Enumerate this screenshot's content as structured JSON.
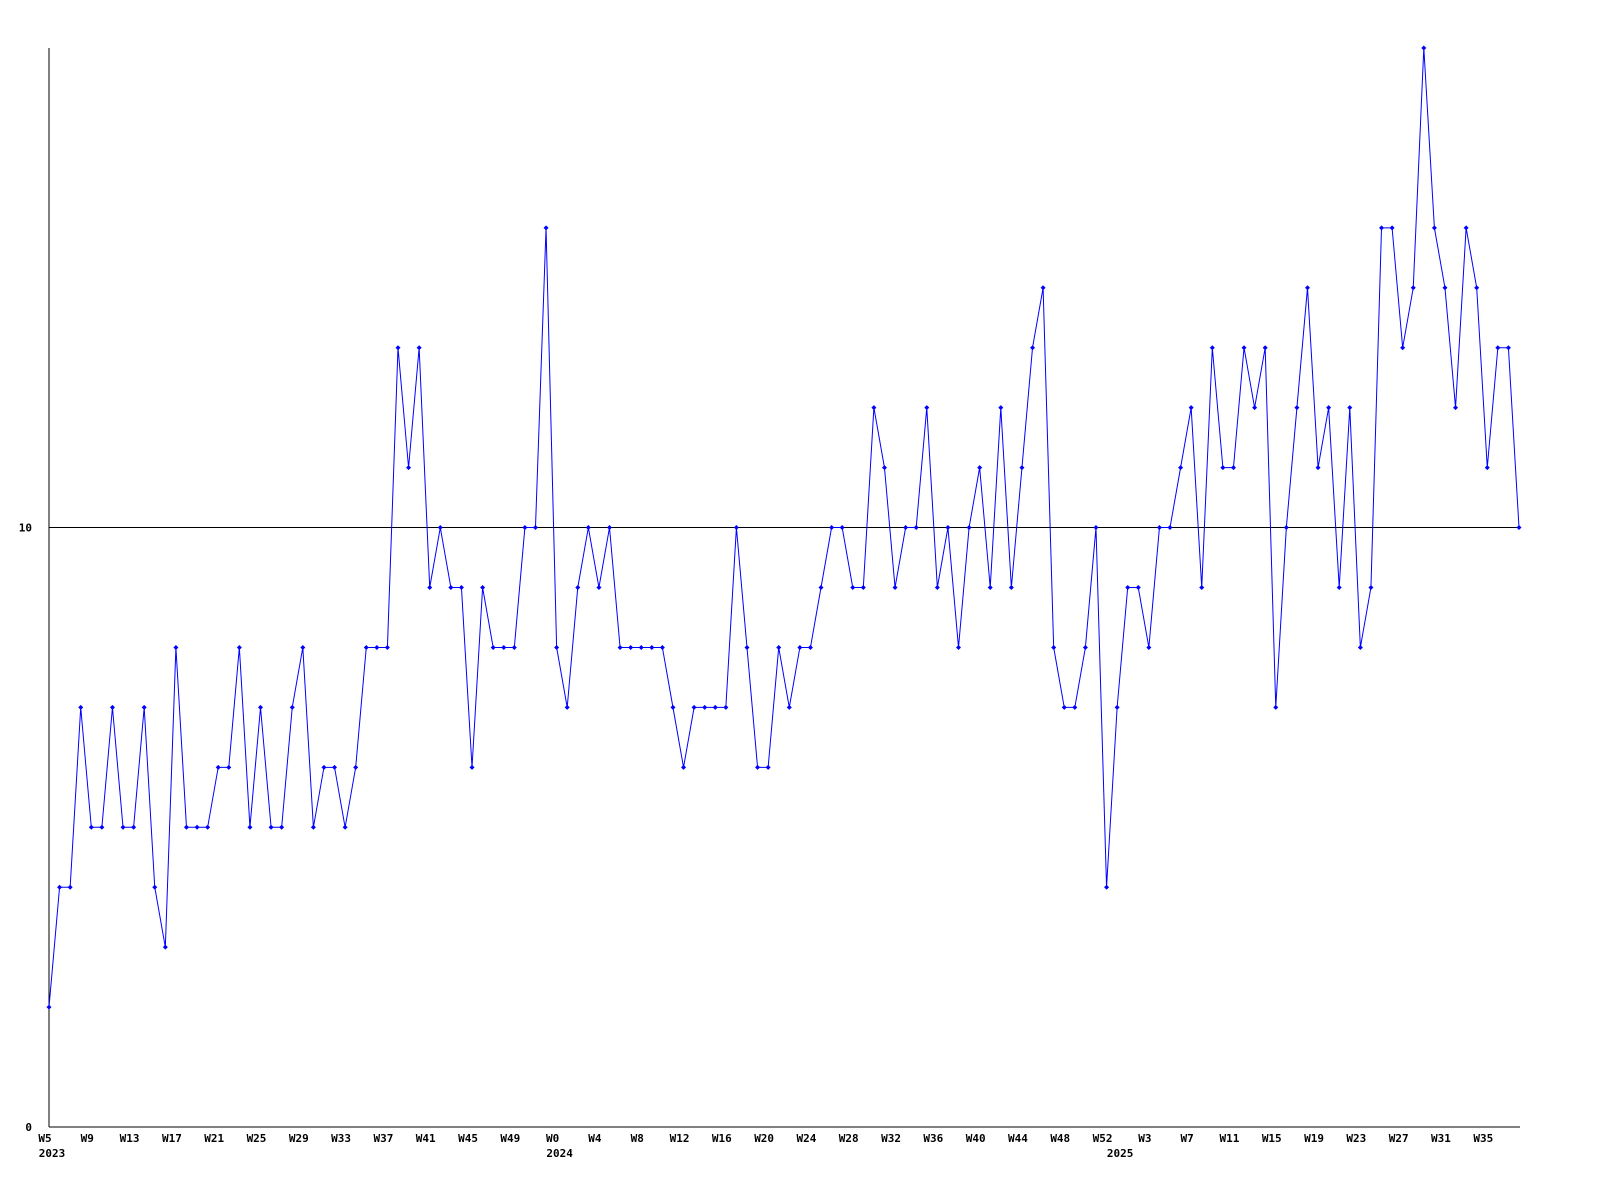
{
  "chart_data": {
    "type": "line",
    "color": "#0000ff",
    "ylim": [
      0,
      18
    ],
    "yticks": [
      0,
      10
    ],
    "grid": true,
    "categories": [
      "W5",
      null,
      null,
      null,
      "W9",
      null,
      null,
      null,
      "W13",
      null,
      null,
      null,
      "W17",
      null,
      null,
      null,
      "W21",
      null,
      null,
      null,
      "W25",
      null,
      null,
      null,
      "W29",
      null,
      null,
      null,
      "W33",
      null,
      null,
      null,
      "W37",
      null,
      null,
      null,
      "W41",
      null,
      null,
      null,
      "W45",
      null,
      null,
      null,
      "W49",
      null,
      null,
      null,
      "W0",
      null,
      null,
      null,
      "W4",
      null,
      null,
      null,
      "W8",
      null,
      null,
      null,
      "W12",
      null,
      null,
      null,
      "W16",
      null,
      null,
      null,
      "W20",
      null,
      null,
      null,
      "W24",
      null,
      null,
      null,
      "W28",
      null,
      null,
      null,
      "W32",
      null,
      null,
      null,
      "W36",
      null,
      null,
      null,
      "W40",
      null,
      null,
      null,
      "W44",
      null,
      null,
      null,
      "W48",
      null,
      null,
      null,
      "W52",
      null,
      null,
      null,
      "W3",
      null,
      null,
      null,
      "W7",
      null,
      null,
      null,
      "W11",
      null,
      null,
      null,
      "W15",
      null,
      null,
      null,
      "W19",
      null,
      null,
      null,
      "W23",
      null,
      null,
      null,
      "W27",
      null,
      null,
      null,
      "W31",
      null,
      null,
      null,
      "W35",
      null,
      null,
      null
    ],
    "year_labels": [
      "2023",
      null,
      null,
      null,
      null,
      null,
      null,
      null,
      null,
      null,
      null,
      null,
      null,
      null,
      null,
      null,
      null,
      null,
      null,
      null,
      null,
      null,
      null,
      null,
      null,
      null,
      null,
      null,
      null,
      null,
      null,
      null,
      null,
      null,
      null,
      null,
      null,
      null,
      null,
      null,
      null,
      null,
      null,
      null,
      null,
      null,
      null,
      null,
      "2024",
      null,
      null,
      null,
      null,
      null,
      null,
      null,
      null,
      null,
      null,
      null,
      null,
      null,
      null,
      null,
      null,
      null,
      null,
      null,
      null,
      null,
      null,
      null,
      null,
      null,
      null,
      null,
      null,
      null,
      null,
      null,
      null,
      null,
      null,
      null,
      null,
      null,
      null,
      null,
      null,
      null,
      null,
      null,
      null,
      null,
      null,
      null,
      null,
      null,
      null,
      null,
      null,
      "2025",
      null,
      null,
      null,
      null,
      null,
      null,
      null,
      null,
      null,
      null,
      null,
      null,
      null,
      null,
      null,
      null,
      null,
      null,
      null,
      null,
      null,
      null,
      null,
      null,
      null,
      null,
      null,
      null,
      null,
      null,
      null,
      null,
      null,
      null,
      null,
      null,
      null,
      null
    ],
    "values": [
      2,
      4,
      4,
      7,
      5,
      5,
      7,
      5,
      5,
      7,
      4,
      3,
      8,
      5,
      5,
      5,
      6,
      6,
      8,
      5,
      7,
      5,
      5,
      7,
      8,
      5,
      6,
      6,
      5,
      6,
      8,
      8,
      8,
      13,
      11,
      13,
      9,
      10,
      9,
      9,
      6,
      9,
      8,
      8,
      8,
      10,
      10,
      15,
      8,
      7,
      9,
      10,
      9,
      10,
      8,
      8,
      8,
      8,
      8,
      7,
      6,
      7,
      7,
      7,
      7,
      10,
      8,
      6,
      6,
      8,
      7,
      8,
      8,
      9,
      10,
      10,
      9,
      9,
      12,
      11,
      9,
      10,
      10,
      12,
      9,
      10,
      8,
      10,
      11,
      9,
      12,
      9,
      11,
      13,
      14,
      8,
      7,
      7,
      8,
      10,
      4,
      7,
      9,
      9,
      8,
      10,
      10,
      11,
      12,
      9,
      13,
      11,
      11,
      13,
      12,
      13,
      7,
      10,
      12,
      14,
      11,
      12,
      9,
      12,
      8,
      9,
      15,
      15,
      13,
      14,
      18,
      15,
      14,
      12,
      15,
      14,
      11,
      13,
      13,
      10
    ]
  }
}
